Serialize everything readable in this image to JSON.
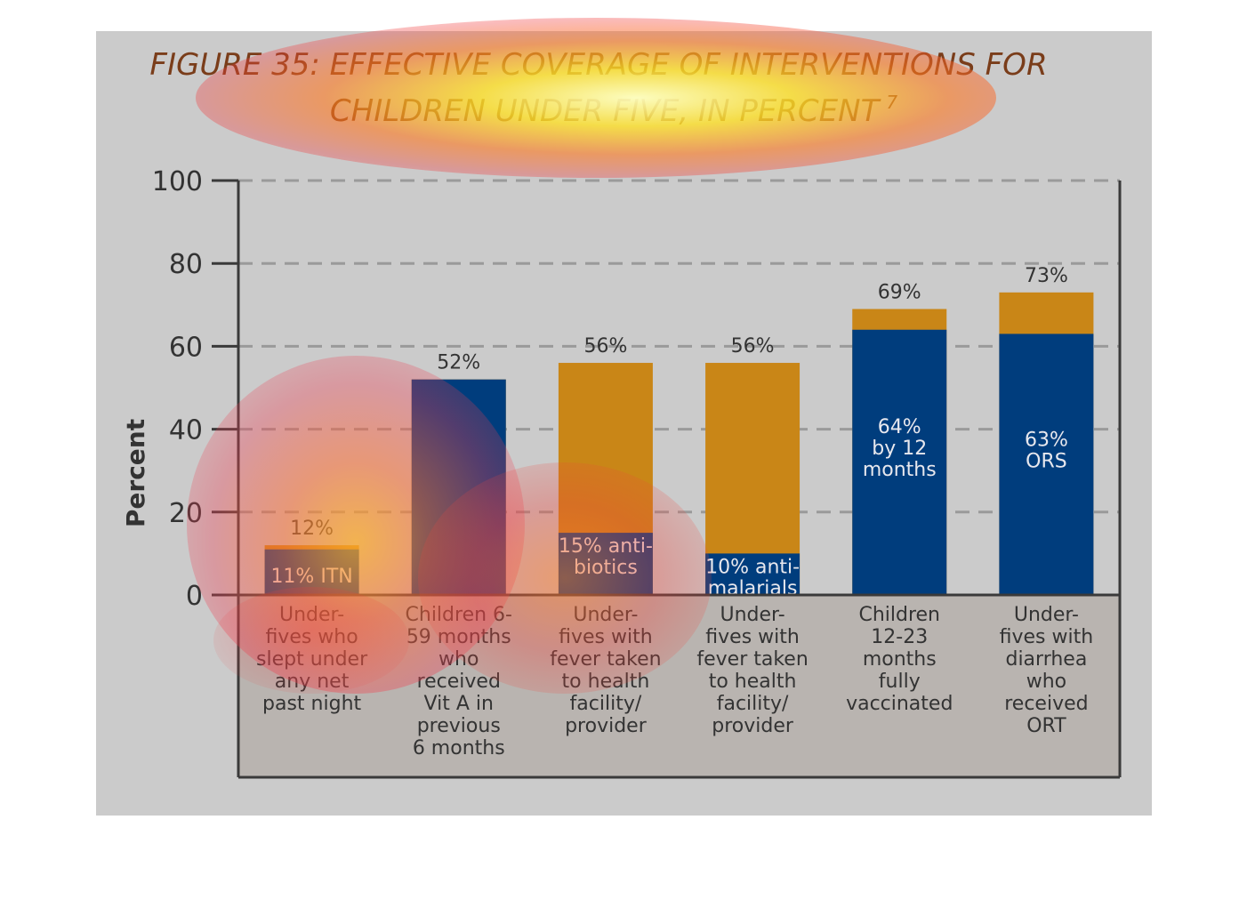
{
  "chart_data": {
    "type": "bar",
    "title_line1": "FIGURE 35: EFFECTIVE COVERAGE OF INTERVENTIONS FOR",
    "title_line2": "CHILDREN UNDER FIVE, IN PERCENT",
    "title_superscript": "7",
    "ylabel": "Percent",
    "ylim": [
      0,
      100
    ],
    "yticks": [
      0,
      20,
      40,
      60,
      80,
      100
    ],
    "grid": true,
    "colors": {
      "effective": "#003d7d",
      "total": "#c98617",
      "panel": "#cbcbcb",
      "title": "#7a3d1a"
    },
    "categories": [
      [
        "Under-",
        "fives who",
        "slept under",
        "any net",
        "past night"
      ],
      [
        "Children 6-",
        "59 months",
        "who",
        "received",
        "Vit A in",
        "previous",
        "6 months"
      ],
      [
        "Under-",
        "fives with",
        "fever taken",
        "to health",
        "facility/",
        "provider"
      ],
      [
        "Under-",
        "fives with",
        "fever taken",
        "to health",
        "facility/",
        "provider"
      ],
      [
        "Children",
        "12-23",
        "months",
        "fully",
        "vaccinated"
      ],
      [
        "Under-",
        "fives with",
        "diarrhea",
        "who",
        "received",
        "ORT"
      ]
    ],
    "totals": [
      12,
      52,
      56,
      56,
      69,
      73
    ],
    "total_labels": [
      "12%",
      "52%",
      "56%",
      "56%",
      "69%",
      "73%"
    ],
    "effective": [
      11,
      52,
      15,
      10,
      64,
      63
    ],
    "inner_labels": [
      [
        "11% ITN"
      ],
      [],
      [
        "15% anti-",
        "biotics"
      ],
      [
        "10% anti-",
        "malarials"
      ],
      [
        "64%",
        "by 12",
        "months"
      ],
      [
        "63%",
        "ORS"
      ]
    ]
  }
}
